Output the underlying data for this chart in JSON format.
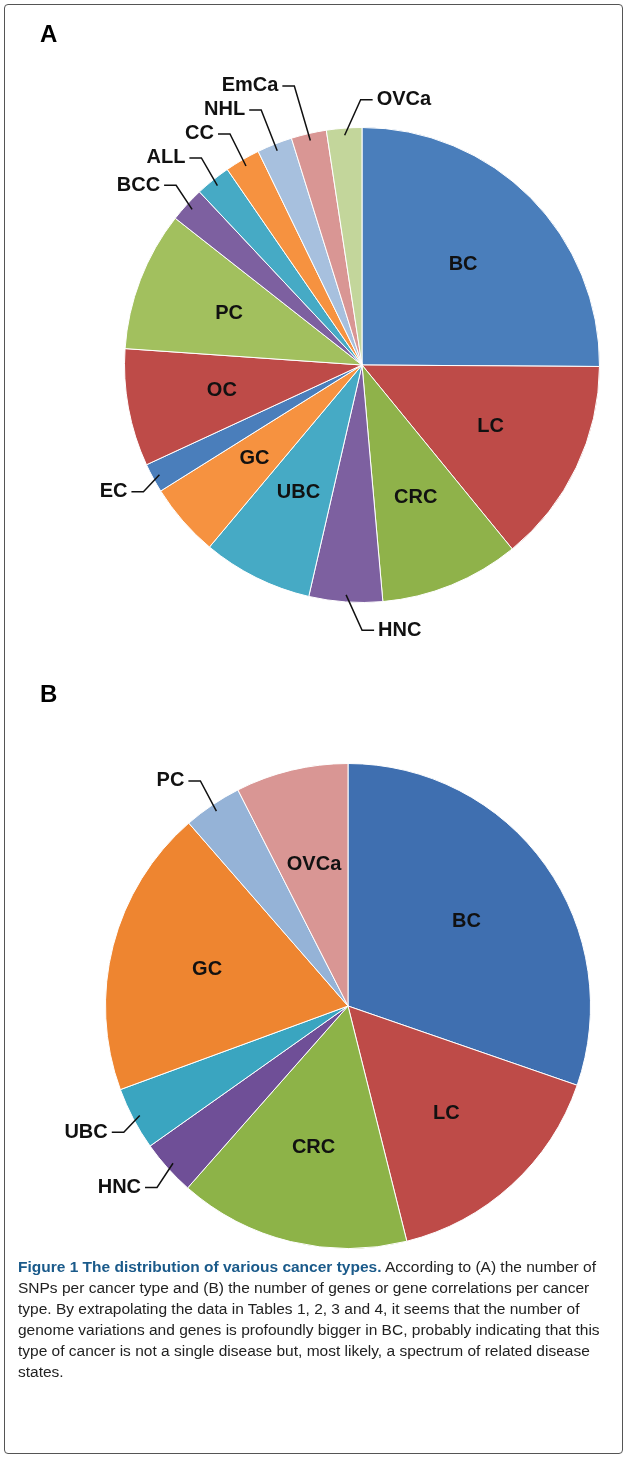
{
  "chart_data": [
    {
      "type": "pie",
      "title": "A",
      "categories": [
        "BC",
        "LC",
        "CRC",
        "HNC",
        "UBC",
        "GC",
        "EC",
        "OC",
        "PC",
        "BCC",
        "ALL",
        "CC",
        "NHL",
        "EmCa",
        "OVCa"
      ],
      "values": [
        25.1,
        14,
        9.5,
        5,
        7.5,
        5,
        2,
        8,
        9.5,
        2.4,
        2.4,
        2.4,
        2.4,
        2.4,
        2.4
      ],
      "colors": [
        "#4a7ebb",
        "#be4b48",
        "#8fb24a",
        "#7d60a0",
        "#46aac5",
        "#f69240",
        "#4a7ebb",
        "#be4b48",
        "#a2c05e",
        "#7d60a0",
        "#46aac5",
        "#f69240",
        "#a7c0de",
        "#d99694",
        "#c3d69b"
      ]
    },
    {
      "type": "pie",
      "title": "B",
      "categories": [
        "BC",
        "LC",
        "CRC",
        "HNC",
        "UBC",
        "GC",
        "PC",
        "OVCa"
      ],
      "values": [
        30.3,
        15.8,
        15.4,
        3.7,
        4.2,
        19.2,
        3.9,
        7.5
      ],
      "colors": [
        "#3f6fb0",
        "#be4b48",
        "#8db348",
        "#6f4f97",
        "#3aa5c0",
        "#ee8530",
        "#95b3d7",
        "#d99694"
      ],
      "annotations": [
        "Figure 1 The distribution of various cancer types.",
        "According to (A) the number of SNPs per cancer type and (B) the number of genes or gene correlations per cancer type. By extrapolating the data in Tables 1, 2, 3 and 4, it seems that the number of genome variations and genes is profoundly bigger in BC, probably indicating that this type of cancer is not a single disease but, most likely, a spectrum of related disease states."
      ]
    }
  ]
}
